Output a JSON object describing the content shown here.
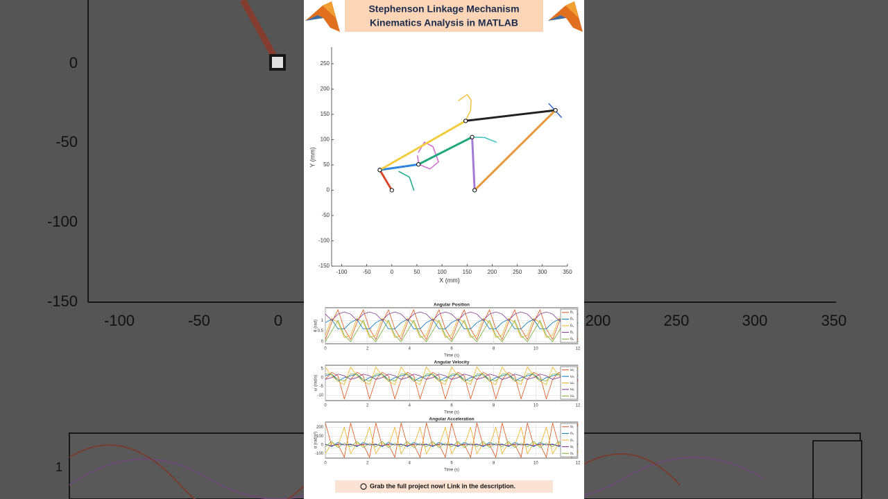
{
  "banner": {
    "line1": "Stephenson Linkage Mechanism",
    "line2": "Kinematics Analysis in MATLAB"
  },
  "footer": "Grab the full project now! Link in the description.",
  "background": {
    "y_labels": [
      "0",
      "-50",
      "-100",
      "-150"
    ],
    "x_labels": [
      "-100",
      "-50",
      "0",
      "200",
      "250",
      "300",
      "350"
    ],
    "y2_label": "1"
  },
  "chart_data": [
    {
      "type": "line",
      "xlabel": "X (mm)",
      "ylabel": "Y (mm)",
      "xlim": [
        -120,
        350
      ],
      "ylim": [
        -150,
        280
      ],
      "xticks": [
        -100,
        -50,
        0,
        50,
        100,
        150,
        200,
        250,
        300,
        350
      ],
      "yticks": [
        -150,
        -100,
        -50,
        0,
        50,
        100,
        150,
        200,
        250
      ],
      "series": [
        {
          "color": "#f0c040",
          "width": 1.5,
          "x": [
            147,
            157,
            158,
            150,
            133
          ],
          "values": [
            137,
            158,
            178,
            189,
            177
          ]
        },
        {
          "color": "#d06ad0",
          "width": 1.5,
          "x": [
            53,
            65,
            82,
            93,
            76,
            54,
            51
          ],
          "values": [
            75,
            95,
            86,
            56,
            42,
            51,
            68
          ]
        },
        {
          "color": "#1aa88a",
          "width": 1.5,
          "x": [
            14,
            35,
            44
          ],
          "values": [
            37,
            26,
            0
          ]
        },
        {
          "color": "#3cc0c0",
          "width": 1.5,
          "x": [
            160,
            185,
            208
          ],
          "values": [
            105,
            104,
            95
          ]
        },
        {
          "color": "#3366cc",
          "width": 1.5,
          "x": [
            313,
            338
          ],
          "values": [
            171,
            144
          ]
        },
        {
          "color": "#d9482b",
          "width": 3,
          "marker": "o",
          "x": [
            0,
            -24
          ],
          "values": [
            0,
            40
          ]
        },
        {
          "color": "#2e86de",
          "width": 3,
          "marker": "o",
          "x": [
            -24,
            53
          ],
          "values": [
            40,
            51
          ]
        },
        {
          "color": "#f2cc3c",
          "width": 3,
          "marker": "o",
          "x": [
            -24,
            147
          ],
          "values": [
            40,
            137
          ]
        },
        {
          "color": "#1fa67a",
          "width": 3,
          "marker": "o",
          "x": [
            53,
            160
          ],
          "values": [
            51,
            105
          ]
        },
        {
          "color": "#a47bd6",
          "width": 3,
          "marker": "o",
          "x": [
            160,
            165
          ],
          "values": [
            105,
            0
          ]
        },
        {
          "color": "#222222",
          "width": 3,
          "marker": "o",
          "x": [
            147,
            326
          ],
          "values": [
            137,
            158
          ]
        },
        {
          "color": "#e8983a",
          "width": 3,
          "marker": "o",
          "x": [
            165,
            326
          ],
          "values": [
            0,
            158
          ]
        }
      ]
    },
    {
      "type": "line",
      "title": "Angular Position",
      "xlabel": "Time (s)",
      "ylabel": "θ (rad)",
      "grid": true,
      "xlim": [
        0,
        12
      ],
      "ylim": [
        -0.1,
        1.6
      ],
      "xticks": [
        0,
        2,
        4,
        6,
        8,
        10,
        12
      ],
      "yticks": [
        0,
        0.5,
        1
      ],
      "x": [
        0,
        0.3,
        0.6,
        0.9,
        1.2,
        1.5,
        1.8,
        2.1,
        2.4,
        2.7,
        3,
        3.3,
        3.6,
        3.9,
        4.2,
        4.5,
        4.8,
        5.1,
        5.4,
        5.7,
        6,
        6.3,
        6.6,
        6.9,
        7.2,
        7.5,
        7.8,
        8.1,
        8.4,
        8.7,
        9,
        9.3,
        9.6,
        9.9,
        10.2,
        10.5,
        10.8,
        11.1,
        11.4,
        11.7,
        12
      ],
      "series": [
        {
          "name": "θ₂",
          "color": "#d95319",
          "values": [
            0.1,
            0.9,
            1.5,
            0.6,
            0.1,
            0.9,
            1.5,
            0.6,
            0.1,
            0.9,
            1.5,
            0.6,
            0.1,
            0.9,
            1.5,
            0.6,
            0.1,
            0.9,
            1.5,
            0.6,
            0.1,
            0.9,
            1.5,
            0.6,
            0.1,
            0.9,
            1.5,
            0.6,
            0.1,
            0.9,
            1.5,
            0.6,
            0.1,
            0.9,
            1.5,
            0.6,
            0.1,
            0.9,
            1.5,
            0.6,
            0.1
          ]
        },
        {
          "name": "θ₃",
          "color": "#0072bd",
          "values": [
            0.9,
            1.05,
            0.6,
            0.6,
            0.9,
            1.05,
            0.6,
            0.6,
            0.9,
            1.05,
            0.6,
            0.6,
            0.9,
            1.05,
            0.6,
            0.6,
            0.9,
            1.05,
            0.6,
            0.6,
            0.9,
            1.05,
            0.6,
            0.6,
            0.9,
            1.05,
            0.6,
            0.6,
            0.9,
            1.05,
            0.6,
            0.6,
            0.9,
            1.05,
            0.6,
            0.6,
            0.9,
            1.05,
            0.6,
            0.6,
            0.9
          ]
        },
        {
          "name": "θ₄",
          "color": "#edb120",
          "values": [
            0.3,
            1.1,
            0.9,
            0.2,
            0.3,
            1.1,
            0.9,
            0.2,
            0.3,
            1.1,
            0.9,
            0.2,
            0.3,
            1.1,
            0.9,
            0.2,
            0.3,
            1.1,
            0.9,
            0.2,
            0.3,
            1.1,
            0.9,
            0.2,
            0.3,
            1.1,
            0.9,
            0.2,
            0.3,
            1.1,
            0.9,
            0.2,
            0.3,
            1.1,
            0.9,
            0.2,
            0.3,
            1.1,
            0.9,
            0.2,
            0.3
          ]
        },
        {
          "name": "θ₅",
          "color": "#7e2f8e",
          "values": [
            1.3,
            1.0,
            1.3,
            1.4,
            1.3,
            1.0,
            1.3,
            1.4,
            1.3,
            1.0,
            1.3,
            1.4,
            1.3,
            1.0,
            1.3,
            1.4,
            1.3,
            1.0,
            1.3,
            1.4,
            1.3,
            1.0,
            1.3,
            1.4,
            1.3,
            1.0,
            1.3,
            1.4,
            1.3,
            1.0,
            1.3,
            1.4,
            1.3,
            1.0,
            1.3,
            1.4,
            1.3,
            1.0,
            1.3,
            1.4,
            1.3
          ]
        },
        {
          "name": "θ₆",
          "color": "#77ac30",
          "values": [
            0,
            0.5,
            1,
            0.3,
            0,
            0.5,
            1,
            0.3,
            0,
            0.5,
            1,
            0.3,
            0,
            0.5,
            1,
            0.3,
            0,
            0.5,
            1,
            0.3,
            0,
            0.5,
            1,
            0.3,
            0,
            0.5,
            1,
            0.3,
            0,
            0.5,
            1,
            0.3,
            0,
            0.5,
            1,
            0.3,
            0,
            0.5,
            1,
            0.3,
            0
          ]
        }
      ]
    },
    {
      "type": "line",
      "title": "Angular Velocity",
      "xlabel": "Time (s)",
      "ylabel": "ω (rad/s)",
      "grid": true,
      "xlim": [
        0,
        12
      ],
      "ylim": [
        -13,
        7
      ],
      "xticks": [
        0,
        2,
        4,
        6,
        8,
        10,
        12
      ],
      "yticks": [
        -10,
        -5,
        0,
        5
      ],
      "x": [
        0,
        0.3,
        0.6,
        0.9,
        1.2,
        1.5,
        1.8,
        2.1,
        2.4,
        2.7,
        3,
        3.3,
        3.6,
        3.9,
        4.2,
        4.5,
        4.8,
        5.1,
        5.4,
        5.7,
        6,
        6.3,
        6.6,
        6.9,
        7.2,
        7.5,
        7.8,
        8.1,
        8.4,
        8.7,
        9,
        9.3,
        9.6,
        9.9,
        10.2,
        10.5,
        10.8,
        11.1,
        11.4,
        11.7,
        12
      ],
      "series": [
        {
          "name": "ω₂",
          "color": "#d95319",
          "values": [
            -1,
            3,
            1,
            -12,
            -1,
            3,
            1,
            -12,
            -1,
            3,
            1,
            -12,
            -1,
            3,
            1,
            -12,
            -1,
            3,
            1,
            -12,
            -1,
            3,
            1,
            -12,
            -1,
            3,
            1,
            -12,
            -1,
            3,
            1,
            -12,
            -1,
            3,
            1,
            -12,
            -1,
            3,
            1,
            -12,
            -1
          ]
        },
        {
          "name": "ω₃",
          "color": "#0072bd",
          "values": [
            1,
            2,
            -2,
            0,
            1,
            2,
            -2,
            0,
            1,
            2,
            -2,
            0,
            1,
            2,
            -2,
            0,
            1,
            2,
            -2,
            0,
            1,
            2,
            -2,
            0,
            1,
            2,
            -2,
            0,
            1,
            2,
            -2,
            0,
            1,
            2,
            -2,
            0,
            1,
            2,
            -2,
            0,
            1
          ]
        },
        {
          "name": "ω₄",
          "color": "#edb120",
          "values": [
            6,
            1,
            -2,
            -4,
            6,
            1,
            -2,
            -4,
            6,
            1,
            -2,
            -4,
            6,
            1,
            -2,
            -4,
            6,
            1,
            -2,
            -4,
            6,
            1,
            -2,
            -4,
            6,
            1,
            -2,
            -4,
            6,
            1,
            -2,
            -4,
            6,
            1,
            -2,
            -4,
            6,
            1,
            -2,
            -4,
            6
          ]
        },
        {
          "name": "ω₅",
          "color": "#7e2f8e",
          "values": [
            -1,
            0,
            2,
            1,
            -1,
            0,
            2,
            1,
            -1,
            0,
            2,
            1,
            -1,
            0,
            2,
            1,
            -1,
            0,
            2,
            1,
            -1,
            0,
            2,
            1,
            -1,
            0,
            2,
            1,
            -1,
            0,
            2,
            1,
            -1,
            0,
            2,
            1,
            -1,
            0,
            2,
            1,
            -1
          ]
        },
        {
          "name": "ω₆",
          "color": "#77ac30",
          "values": [
            2,
            2,
            -1,
            -2,
            2,
            2,
            -1,
            -2,
            2,
            2,
            -1,
            -2,
            2,
            2,
            -1,
            -2,
            2,
            2,
            -1,
            -2,
            2,
            2,
            -1,
            -2,
            2,
            2,
            -1,
            -2,
            2,
            2,
            -1,
            -2,
            2,
            2,
            -1,
            -2,
            2,
            2,
            -1,
            -2,
            2
          ]
        }
      ]
    },
    {
      "type": "line",
      "title": "Angular Acceleration",
      "xlabel": "Time (s)",
      "ylabel": "α (rad/s²)",
      "grid": true,
      "xlim": [
        0,
        12
      ],
      "ylim": [
        -150,
        260
      ],
      "xticks": [
        0,
        2,
        4,
        6,
        8,
        10,
        12
      ],
      "yticks": [
        -100,
        0,
        100,
        200
      ],
      "x": [
        0,
        0.3,
        0.6,
        0.9,
        1.2,
        1.5,
        1.8,
        2.1,
        2.4,
        2.7,
        3,
        3.3,
        3.6,
        3.9,
        4.2,
        4.5,
        4.8,
        5.1,
        5.4,
        5.7,
        6,
        6.3,
        6.6,
        6.9,
        7.2,
        7.5,
        7.8,
        8.1,
        8.4,
        8.7,
        9,
        9.3,
        9.6,
        9.9,
        10.2,
        10.5,
        10.8,
        11.1,
        11.4,
        11.7,
        12
      ],
      "series": [
        {
          "name": "α₂",
          "color": "#d95319",
          "values": [
            250,
            -10,
            5,
            -140,
            250,
            -10,
            5,
            -140,
            250,
            -10,
            5,
            -140,
            250,
            -10,
            5,
            -140,
            250,
            -10,
            5,
            -140,
            250,
            -10,
            5,
            -140,
            250,
            -10,
            5,
            -140,
            250,
            -10,
            5,
            -140,
            250,
            -10,
            5,
            -140,
            250,
            -10,
            5,
            -140,
            250
          ]
        },
        {
          "name": "α₃",
          "color": "#0072bd",
          "values": [
            10,
            -20,
            30,
            0,
            10,
            -20,
            30,
            0,
            10,
            -20,
            30,
            0,
            10,
            -20,
            30,
            0,
            10,
            -20,
            30,
            0,
            10,
            -20,
            30,
            0,
            10,
            -20,
            30,
            0,
            10,
            -20,
            30,
            0,
            10,
            -20,
            30,
            0,
            10,
            -20,
            30,
            0,
            10
          ]
        },
        {
          "name": "α₄",
          "color": "#edb120",
          "values": [
            -100,
            20,
            -10,
            200,
            -100,
            20,
            -10,
            200,
            -100,
            20,
            -10,
            200,
            -100,
            20,
            -10,
            200,
            -100,
            20,
            -10,
            200,
            -100,
            20,
            -10,
            200,
            -100,
            20,
            -10,
            200,
            -100,
            20,
            -10,
            200,
            -100,
            20,
            -10,
            200,
            -100,
            20,
            -10,
            200,
            -100
          ]
        },
        {
          "name": "α₅",
          "color": "#7e2f8e",
          "values": [
            5,
            -10,
            10,
            0,
            5,
            -10,
            10,
            0,
            5,
            -10,
            10,
            0,
            5,
            -10,
            10,
            0,
            5,
            -10,
            10,
            0,
            5,
            -10,
            10,
            0,
            5,
            -10,
            10,
            0,
            5,
            -10,
            10,
            0,
            5,
            -10,
            10,
            0,
            5,
            -10,
            10,
            0,
            5
          ]
        },
        {
          "name": "α₆",
          "color": "#77ac30",
          "values": [
            -20,
            40,
            -30,
            20,
            -20,
            40,
            -30,
            20,
            -20,
            40,
            -30,
            20,
            -20,
            40,
            -30,
            20,
            -20,
            40,
            -30,
            20,
            -20,
            40,
            -30,
            20,
            -20,
            40,
            -30,
            20,
            -20,
            40,
            -30,
            20,
            -20,
            40,
            -30,
            20,
            -20,
            40,
            -30,
            20,
            -20
          ]
        }
      ]
    }
  ]
}
